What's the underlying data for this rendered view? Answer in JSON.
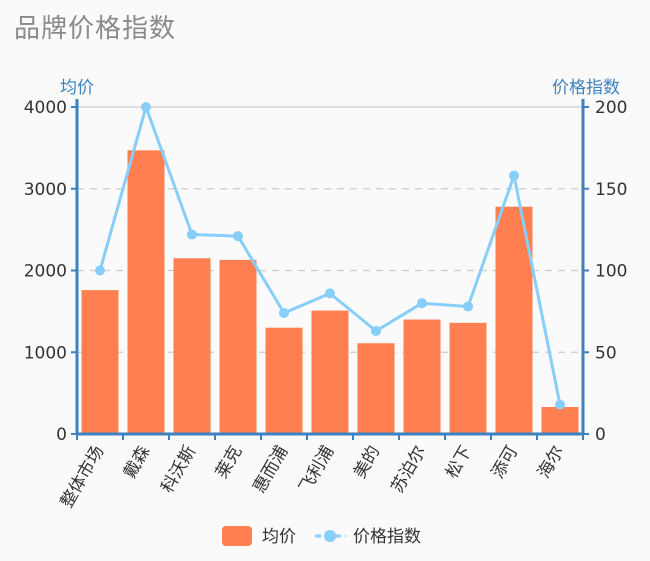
{
  "chart_data": {
    "type": "bar",
    "title": "品牌价格指数",
    "categories": [
      "整体市场",
      "戴森",
      "科沃斯",
      "莱克",
      "惠而浦",
      "飞利浦",
      "美的",
      "苏泊尔",
      "松下",
      "添可",
      "海尔"
    ],
    "series": [
      {
        "name": "均价",
        "type": "bar",
        "axis": "left",
        "values": [
          1760,
          3470,
          2150,
          2130,
          1300,
          1510,
          1110,
          1400,
          1360,
          2780,
          330
        ],
        "color": "#ff7f50"
      },
      {
        "name": "价格指数",
        "type": "line",
        "axis": "right",
        "values": [
          100,
          200,
          122,
          121,
          74,
          86,
          63,
          80,
          78,
          158,
          18
        ],
        "color": "#87cefa"
      }
    ],
    "yleft": {
      "label": "均价",
      "min": 0,
      "max": 4000,
      "ticks": [
        0,
        1000,
        2000,
        3000,
        4000
      ]
    },
    "yright": {
      "label": "价格指数",
      "min": 0,
      "max": 200,
      "ticks": [
        0,
        50,
        100,
        150,
        200
      ]
    },
    "grid": true,
    "legend": "bottom"
  }
}
